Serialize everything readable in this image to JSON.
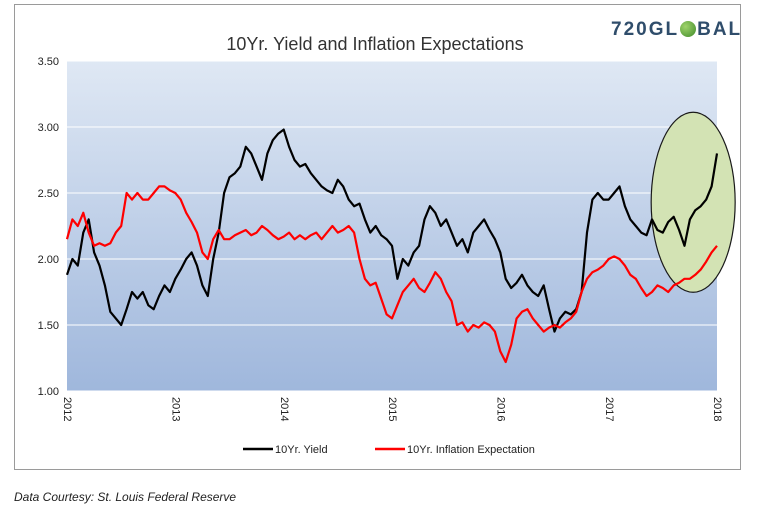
{
  "caption": "Data Courtesy: St. Louis Federal Reserve",
  "logo": {
    "text_left": "720GL",
    "text_right": "BAL"
  },
  "colors": {
    "yield": "#000000",
    "inflation": "#ff0000",
    "plot_top": "#dfe8f4",
    "plot_bottom": "#9fb7dc",
    "highlight_fill": "#d3e3b4",
    "highlight_stroke": "#1a1a1a",
    "gridline": "#ffffff"
  },
  "chart_data": {
    "type": "line",
    "title": "10Yr. Yield and Inflation Expectations",
    "xlabel": "",
    "ylabel": "",
    "xlim": [
      2012.0,
      2018.0
    ],
    "ylim": [
      1.0,
      3.5
    ],
    "yticks": [
      "1.00",
      "1.50",
      "2.00",
      "2.50",
      "3.00",
      "3.50"
    ],
    "xticks": [
      "2012",
      "2013",
      "2014",
      "2015",
      "2016",
      "2017",
      "2018"
    ],
    "grid": true,
    "legend_position": "bottom",
    "annotation": "highlight ellipse around late-2017 to 2018",
    "series": [
      {
        "name": "10Yr. Yield",
        "color": "#000000",
        "x": [
          2012.0,
          2012.05,
          2012.1,
          2012.15,
          2012.2,
          2012.25,
          2012.3,
          2012.35,
          2012.4,
          2012.45,
          2012.5,
          2012.55,
          2012.6,
          2012.65,
          2012.7,
          2012.75,
          2012.8,
          2012.85,
          2012.9,
          2012.95,
          2013.0,
          2013.05,
          2013.1,
          2013.15,
          2013.2,
          2013.25,
          2013.3,
          2013.35,
          2013.4,
          2013.45,
          2013.5,
          2013.55,
          2013.6,
          2013.65,
          2013.7,
          2013.75,
          2013.8,
          2013.85,
          2013.9,
          2013.95,
          2014.0,
          2014.05,
          2014.1,
          2014.15,
          2014.2,
          2014.25,
          2014.3,
          2014.35,
          2014.4,
          2014.45,
          2014.5,
          2014.55,
          2014.6,
          2014.65,
          2014.7,
          2014.75,
          2014.8,
          2014.85,
          2014.9,
          2014.95,
          2015.0,
          2015.05,
          2015.1,
          2015.15,
          2015.2,
          2015.25,
          2015.3,
          2015.35,
          2015.4,
          2015.45,
          2015.5,
          2015.55,
          2015.6,
          2015.65,
          2015.7,
          2015.75,
          2015.8,
          2015.85,
          2015.9,
          2015.95,
          2016.0,
          2016.05,
          2016.1,
          2016.15,
          2016.2,
          2016.25,
          2016.3,
          2016.35,
          2016.4,
          2016.45,
          2016.5,
          2016.55,
          2016.6,
          2016.65,
          2016.7,
          2016.75,
          2016.8,
          2016.85,
          2016.9,
          2016.95,
          2017.0,
          2017.05,
          2017.1,
          2017.15,
          2017.2,
          2017.25,
          2017.3,
          2017.35,
          2017.4,
          2017.45,
          2017.5,
          2017.55,
          2017.6,
          2017.65,
          2017.7,
          2017.75,
          2017.8,
          2017.85,
          2017.9,
          2017.95,
          2018.0
        ],
        "values": [
          1.88,
          2.0,
          1.95,
          2.2,
          2.3,
          2.05,
          1.95,
          1.8,
          1.6,
          1.55,
          1.5,
          1.62,
          1.75,
          1.7,
          1.75,
          1.65,
          1.62,
          1.72,
          1.8,
          1.75,
          1.85,
          1.92,
          2.0,
          2.05,
          1.95,
          1.8,
          1.72,
          2.0,
          2.2,
          2.5,
          2.62,
          2.65,
          2.7,
          2.85,
          2.8,
          2.7,
          2.6,
          2.8,
          2.9,
          2.95,
          2.98,
          2.85,
          2.75,
          2.7,
          2.72,
          2.65,
          2.6,
          2.55,
          2.52,
          2.5,
          2.6,
          2.55,
          2.45,
          2.4,
          2.42,
          2.3,
          2.2,
          2.25,
          2.18,
          2.15,
          2.1,
          1.85,
          2.0,
          1.95,
          2.05,
          2.1,
          2.3,
          2.4,
          2.35,
          2.25,
          2.3,
          2.2,
          2.1,
          2.15,
          2.05,
          2.2,
          2.25,
          2.3,
          2.22,
          2.15,
          2.05,
          1.85,
          1.78,
          1.82,
          1.88,
          1.8,
          1.75,
          1.72,
          1.8,
          1.62,
          1.45,
          1.55,
          1.6,
          1.58,
          1.62,
          1.75,
          2.2,
          2.45,
          2.5,
          2.45,
          2.45,
          2.5,
          2.55,
          2.4,
          2.3,
          2.25,
          2.2,
          2.18,
          2.3,
          2.22,
          2.2,
          2.28,
          2.32,
          2.22,
          2.1,
          2.3,
          2.37,
          2.4,
          2.45,
          2.55,
          2.8
        ]
      },
      {
        "name": "10Yr. Inflation Expectation",
        "color": "#ff0000",
        "x": [
          2012.0,
          2012.05,
          2012.1,
          2012.15,
          2012.2,
          2012.25,
          2012.3,
          2012.35,
          2012.4,
          2012.45,
          2012.5,
          2012.55,
          2012.6,
          2012.65,
          2012.7,
          2012.75,
          2012.8,
          2012.85,
          2012.9,
          2012.95,
          2013.0,
          2013.05,
          2013.1,
          2013.15,
          2013.2,
          2013.25,
          2013.3,
          2013.35,
          2013.4,
          2013.45,
          2013.5,
          2013.55,
          2013.6,
          2013.65,
          2013.7,
          2013.75,
          2013.8,
          2013.85,
          2013.9,
          2013.95,
          2014.0,
          2014.05,
          2014.1,
          2014.15,
          2014.2,
          2014.25,
          2014.3,
          2014.35,
          2014.4,
          2014.45,
          2014.5,
          2014.55,
          2014.6,
          2014.65,
          2014.7,
          2014.75,
          2014.8,
          2014.85,
          2014.9,
          2014.95,
          2015.0,
          2015.05,
          2015.1,
          2015.15,
          2015.2,
          2015.25,
          2015.3,
          2015.35,
          2015.4,
          2015.45,
          2015.5,
          2015.55,
          2015.6,
          2015.65,
          2015.7,
          2015.75,
          2015.8,
          2015.85,
          2015.9,
          2015.95,
          2016.0,
          2016.05,
          2016.1,
          2016.15,
          2016.2,
          2016.25,
          2016.3,
          2016.35,
          2016.4,
          2016.45,
          2016.5,
          2016.55,
          2016.6,
          2016.65,
          2016.7,
          2016.75,
          2016.8,
          2016.85,
          2016.9,
          2016.95,
          2017.0,
          2017.05,
          2017.1,
          2017.15,
          2017.2,
          2017.25,
          2017.3,
          2017.35,
          2017.4,
          2017.45,
          2017.5,
          2017.55,
          2017.6,
          2017.65,
          2017.7,
          2017.75,
          2017.8,
          2017.85,
          2017.9,
          2017.95,
          2018.0
        ],
        "values": [
          2.15,
          2.3,
          2.25,
          2.35,
          2.2,
          2.1,
          2.12,
          2.1,
          2.12,
          2.2,
          2.25,
          2.5,
          2.45,
          2.5,
          2.45,
          2.45,
          2.5,
          2.55,
          2.55,
          2.52,
          2.5,
          2.45,
          2.35,
          2.28,
          2.2,
          2.05,
          2.0,
          2.15,
          2.22,
          2.15,
          2.15,
          2.18,
          2.2,
          2.22,
          2.18,
          2.2,
          2.25,
          2.22,
          2.18,
          2.15,
          2.17,
          2.2,
          2.15,
          2.18,
          2.15,
          2.18,
          2.2,
          2.15,
          2.2,
          2.25,
          2.2,
          2.22,
          2.25,
          2.2,
          2.0,
          1.85,
          1.8,
          1.82,
          1.7,
          1.58,
          1.55,
          1.65,
          1.75,
          1.8,
          1.85,
          1.78,
          1.75,
          1.82,
          1.9,
          1.85,
          1.75,
          1.68,
          1.5,
          1.52,
          1.45,
          1.5,
          1.48,
          1.52,
          1.5,
          1.45,
          1.3,
          1.22,
          1.35,
          1.55,
          1.6,
          1.62,
          1.55,
          1.5,
          1.45,
          1.48,
          1.5,
          1.48,
          1.52,
          1.55,
          1.6,
          1.75,
          1.85,
          1.9,
          1.92,
          1.95,
          2.0,
          2.02,
          2.0,
          1.95,
          1.88,
          1.85,
          1.78,
          1.72,
          1.75,
          1.8,
          1.78,
          1.75,
          1.8,
          1.82,
          1.85,
          1.85,
          1.88,
          1.92,
          1.98,
          2.05,
          2.1
        ]
      }
    ]
  }
}
